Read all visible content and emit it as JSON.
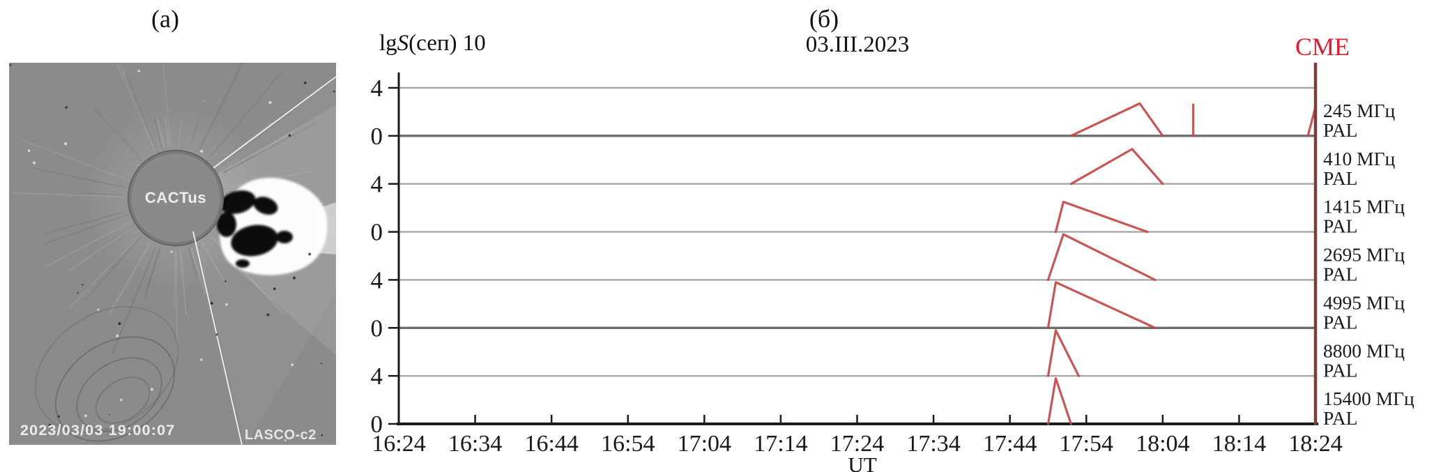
{
  "panel_a": {
    "label": "(a)",
    "image": {
      "overlay_label": "CACTus",
      "timestamp": "2023/03/03 19:00:07",
      "instrument_label": "LASCO-c2"
    }
  },
  "panel_b": {
    "label": "(б)",
    "date": "03.III.2023",
    "cme_label": "СМЕ",
    "x_axis_label": "UT",
    "axis_title": {
      "prefix": "lg",
      "symbol": "S",
      "suffix": "(сеп) 10"
    }
  },
  "chart_data": {
    "type": "line",
    "title": "03.III.2023",
    "xlabel": "UT",
    "ylabel": "lgS(сеп) 10",
    "x_range": [
      "16:24",
      "18:24"
    ],
    "x_ticks": [
      "16:24",
      "16:34",
      "16:44",
      "16:54",
      "17:04",
      "17:14",
      "17:24",
      "17:34",
      "17:44",
      "17:54",
      "18:04",
      "18:14",
      "18:24"
    ],
    "y_tick_labels_top_to_bottom": [
      "4",
      "0",
      "4",
      "0",
      "4",
      "0",
      "4",
      "0"
    ],
    "band_value_range": [
      0,
      4
    ],
    "grid": true,
    "cme_time": "18:24",
    "bands": [
      {
        "frequency": "245 МГц",
        "station": "PAL",
        "segments": [
          [
            [
              "17:52",
              0
            ],
            [
              "18:01",
              2.7
            ],
            [
              "18:04",
              0
            ]
          ],
          [
            [
              "18:08",
              0
            ],
            [
              "18:08",
              2.6
            ]
          ],
          [
            [
              "18:23",
              0
            ],
            [
              "18:24",
              2.4
            ]
          ]
        ]
      },
      {
        "frequency": "410 МГц",
        "station": "PAL",
        "segments": [
          [
            [
              "17:52",
              0
            ],
            [
              "18:00",
              2.9
            ],
            [
              "18:04",
              0
            ]
          ]
        ]
      },
      {
        "frequency": "1415 МГц",
        "station": "PAL",
        "segments": [
          [
            [
              "17:50",
              0
            ],
            [
              "17:51",
              2.5
            ],
            [
              "18:02",
              0
            ]
          ]
        ]
      },
      {
        "frequency": "2695 МГц",
        "station": "PAL",
        "segments": [
          [
            [
              "17:49",
              0
            ],
            [
              "17:51",
              3.8
            ],
            [
              "18:03",
              0
            ]
          ]
        ]
      },
      {
        "frequency": "4995 МГц",
        "station": "PAL",
        "segments": [
          [
            [
              "17:49",
              0
            ],
            [
              "17:50",
              3.8
            ],
            [
              "18:03",
              0
            ]
          ]
        ]
      },
      {
        "frequency": "8800 МГц",
        "station": "PAL",
        "segments": [
          [
            [
              "17:49",
              0
            ],
            [
              "17:50",
              3.8
            ],
            [
              "17:53",
              0
            ]
          ]
        ]
      },
      {
        "frequency": "15400 МГц",
        "station": "PAL",
        "segments": [
          [
            [
              "17:49",
              0
            ],
            [
              "17:50",
              3.8
            ],
            [
              "17:52",
              0
            ]
          ]
        ]
      }
    ],
    "colors": {
      "curve": "#c94545",
      "cme_line": "#7a3c3c",
      "cme_text": "#e8192c",
      "grid": "#a6a6a6",
      "grid_dark": "#6d6d6d",
      "axis": "#1a1a1a"
    },
    "layout": {
      "dark_grid_indices": [
        1,
        5
      ],
      "legend": "none"
    }
  }
}
